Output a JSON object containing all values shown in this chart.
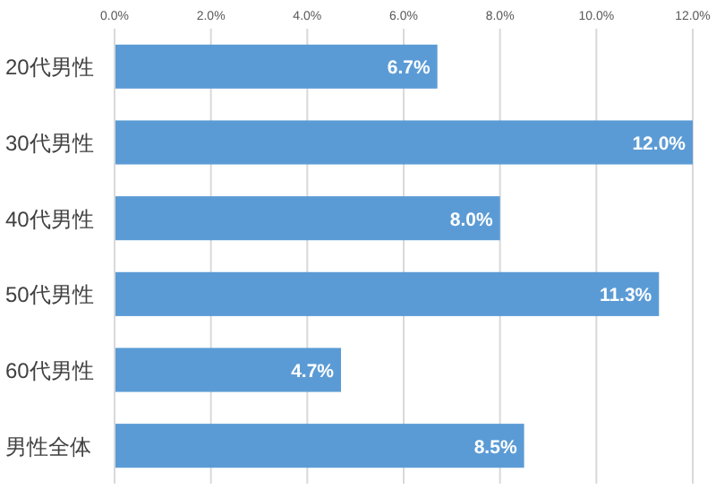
{
  "chart_data": {
    "type": "bar",
    "orientation": "horizontal",
    "categories": [
      "20代男性",
      "30代男性",
      "40代男性",
      "50代男性",
      "60代男性",
      "男性全体"
    ],
    "values": [
      6.7,
      12.0,
      8.0,
      11.3,
      4.7,
      8.5
    ],
    "value_labels": [
      "6.7%",
      "12.0%",
      "8.0%",
      "11.3%",
      "4.7%",
      "8.5%"
    ],
    "color": "#5b9bd5",
    "xlim": [
      0,
      12
    ],
    "xticks": [
      {
        "value": 0,
        "label": "0.0%"
      },
      {
        "value": 2,
        "label": "2.0%"
      },
      {
        "value": 4,
        "label": "4.0%"
      },
      {
        "value": 6,
        "label": "6.0%"
      },
      {
        "value": 8,
        "label": "8.0%"
      },
      {
        "value": 10,
        "label": "10.0%"
      },
      {
        "value": 12,
        "label": "12.0%"
      }
    ],
    "grid": "x"
  }
}
